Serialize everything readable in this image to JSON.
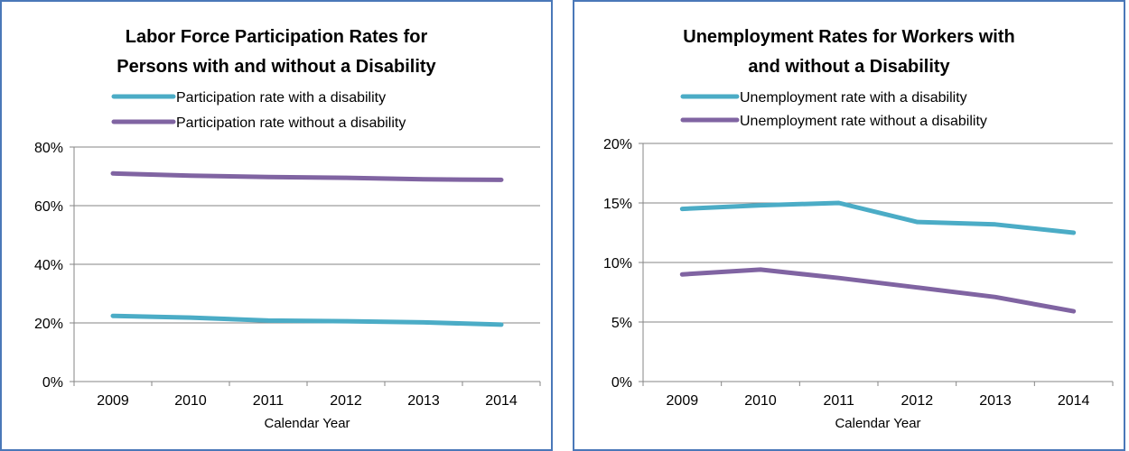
{
  "chart_data": [
    {
      "type": "line",
      "title": [
        "Labor Force Participation Rates for",
        "Persons with and without a Disability"
      ],
      "xlabel": "Calendar Year",
      "ylabel": "",
      "categories": [
        "2009",
        "2010",
        "2011",
        "2012",
        "2013",
        "2014"
      ],
      "ylim": [
        0,
        80
      ],
      "yticks": [
        "0%",
        "20%",
        "40%",
        "60%",
        "80%"
      ],
      "grid": true,
      "legend_position": "top",
      "series": [
        {
          "name": "Participation rate with a disability",
          "color": "#4bacc6",
          "values": [
            22.4,
            21.8,
            20.8,
            20.6,
            20.2,
            19.4
          ]
        },
        {
          "name": "Participation rate without a disability",
          "color": "#8064a2",
          "values": [
            71.0,
            70.2,
            69.8,
            69.5,
            69.0,
            68.8
          ]
        }
      ]
    },
    {
      "type": "line",
      "title": [
        "Unemployment Rates for Workers with",
        "and without a Disability"
      ],
      "xlabel": "Calendar Year",
      "ylabel": "",
      "categories": [
        "2009",
        "2010",
        "2011",
        "2012",
        "2013",
        "2014"
      ],
      "ylim": [
        0,
        20
      ],
      "yticks": [
        "0%",
        "5%",
        "10%",
        "15%",
        "20%"
      ],
      "grid": true,
      "legend_position": "top",
      "series": [
        {
          "name": "Unemployment rate with a disability",
          "color": "#4bacc6",
          "values": [
            14.5,
            14.8,
            15.0,
            13.4,
            13.2,
            12.5
          ]
        },
        {
          "name": "Unemployment rate without a disability",
          "color": "#8064a2",
          "values": [
            9.0,
            9.4,
            8.7,
            7.9,
            7.1,
            5.9
          ]
        }
      ]
    }
  ]
}
